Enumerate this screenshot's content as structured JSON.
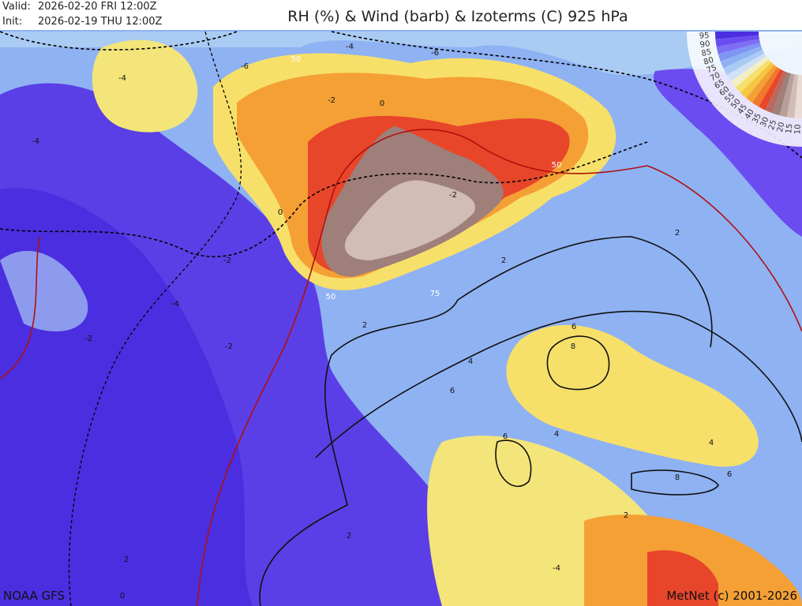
{
  "header": {
    "valid_label": "Valid:",
    "valid": "2026-02-20 FRI   12:00Z",
    "init_label": "Init:",
    "init": "2026-02-19 THU  12:00Z",
    "title": "RH (%) & Wind (barb) & Izoterms (C) 925 hPa"
  },
  "legend": {
    "values": [
      95,
      90,
      85,
      80,
      75,
      70,
      65,
      60,
      55,
      50,
      45,
      40,
      35,
      30,
      25,
      20,
      15,
      10
    ],
    "colors": [
      "#4b2ee0",
      "#6a4cf0",
      "#7d6ef5",
      "#7f96f3",
      "#8fb2f3",
      "#aacbf3",
      "#cfe1f5",
      "#f3efc4",
      "#f7e06a",
      "#f5c640",
      "#f4a035",
      "#f07a2a",
      "#e8462a",
      "#b86a60",
      "#9e7f7a",
      "#b8a09a",
      "#d2bdb6",
      "#e9dcd6"
    ]
  },
  "isotherm_labels": [
    "-4",
    "-6",
    "-4",
    "-2",
    "0",
    "-2",
    "-6",
    "-4",
    "-2",
    "0",
    "2",
    "-2",
    "2",
    "-4",
    "-2",
    "2",
    "4",
    "6",
    "8",
    "6",
    "6",
    "4",
    "8",
    "6",
    "4",
    "2",
    "2",
    "0",
    "2",
    "-4"
  ],
  "rh_labels": [
    "50",
    "50",
    "75",
    "50"
  ],
  "footer": {
    "source": "NOAA GFS",
    "copyright": "MetNet (c) 2001-2026"
  }
}
